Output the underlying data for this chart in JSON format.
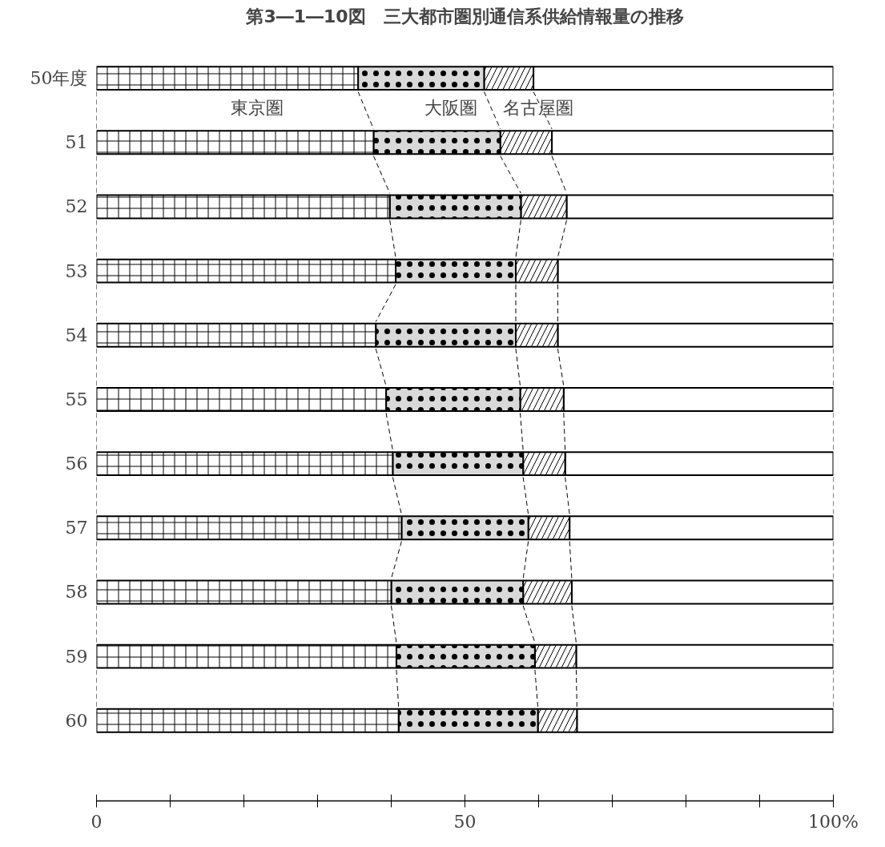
{
  "chart_data": {
    "type": "bar",
    "orientation": "horizontal",
    "stacked": true,
    "title": "第3―1―10図　三大都市圏別通信系供給情報量の推移",
    "categories": [
      "50年度",
      "51",
      "52",
      "53",
      "54",
      "55",
      "56",
      "57",
      "58",
      "59",
      "60"
    ],
    "series": [
      {
        "name": "東京圏",
        "color": "#ffffff",
        "values": [
          35.5,
          37.6,
          39.8,
          40.6,
          37.9,
          39.3,
          40.2,
          41.4,
          40.0,
          40.7,
          41.0
        ]
      },
      {
        "name": "大阪圏",
        "color": "#d9d9d9",
        "values": [
          17.1,
          17.2,
          17.8,
          16.3,
          19.0,
          18.2,
          17.7,
          17.2,
          17.9,
          18.8,
          18.9
        ]
      },
      {
        "name": "名古屋圏",
        "color": "#ffffff",
        "values": [
          6.7,
          7.0,
          6.2,
          5.7,
          5.7,
          5.9,
          5.7,
          5.6,
          6.6,
          5.6,
          5.3
        ]
      },
      {
        "color": "#ffffff",
        "values": [
          40.7,
          38.2,
          36.2,
          37.4,
          37.4,
          36.6,
          36.4,
          35.8,
          35.5,
          34.9,
          34.8
        ]
      }
    ],
    "xlim": [
      0,
      100
    ],
    "xticks": [
      0,
      50,
      {
        "value": 100,
        "label": "100%"
      }
    ],
    "grid": false,
    "legend": false
  }
}
